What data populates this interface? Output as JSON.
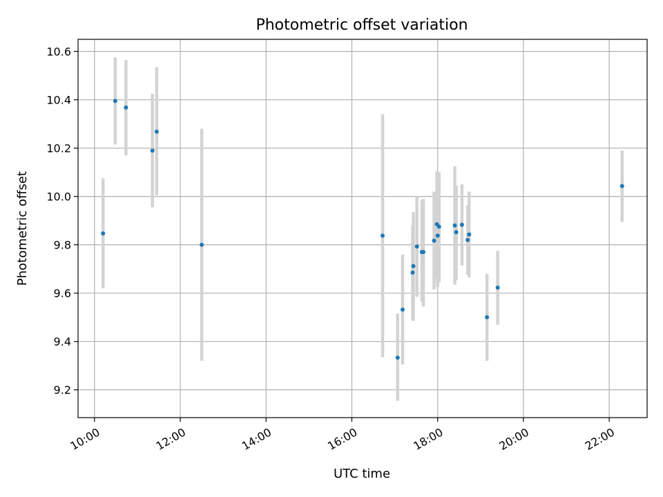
{
  "chart_data": {
    "type": "scatter",
    "title": "Photometric offset variation",
    "xlabel": "UTC time",
    "ylabel": "Photometric offset",
    "xlim": [
      "09:37",
      "22:53"
    ],
    "ylim": [
      9.085,
      10.65
    ],
    "x_ticks": [
      "10:00",
      "12:00",
      "14:00",
      "16:00",
      "18:00",
      "20:00",
      "22:00"
    ],
    "y_ticks": [
      9.2,
      9.4,
      9.6,
      9.8,
      10.0,
      10.2,
      10.4,
      10.6
    ],
    "grid": true,
    "marker_color": "#1f77b4",
    "errorbar_color": "#d3d3d3",
    "points": [
      {
        "time": "10:12",
        "value": 9.847,
        "low": 9.62,
        "high": 10.075
      },
      {
        "time": "10:29",
        "value": 10.395,
        "low": 10.215,
        "high": 10.575
      },
      {
        "time": "10:44",
        "value": 10.368,
        "low": 10.17,
        "high": 10.565
      },
      {
        "time": "11:21",
        "value": 10.19,
        "low": 9.955,
        "high": 10.425
      },
      {
        "time": "11:27",
        "value": 10.268,
        "low": 10.005,
        "high": 10.535
      },
      {
        "time": "12:30",
        "value": 9.8,
        "low": 9.32,
        "high": 10.28
      },
      {
        "time": "16:43",
        "value": 9.838,
        "low": 9.335,
        "high": 10.34
      },
      {
        "time": "17:04",
        "value": 9.333,
        "low": 9.155,
        "high": 9.515
      },
      {
        "time": "17:11",
        "value": 9.532,
        "low": 9.305,
        "high": 9.76
      },
      {
        "time": "17:25",
        "value": 9.685,
        "low": 9.49,
        "high": 9.88
      },
      {
        "time": "17:26",
        "value": 9.712,
        "low": 9.485,
        "high": 9.935
      },
      {
        "time": "17:31",
        "value": 9.793,
        "low": 9.585,
        "high": 10.0
      },
      {
        "time": "17:38",
        "value": 9.77,
        "low": 9.565,
        "high": 9.985
      },
      {
        "time": "17:40",
        "value": 9.77,
        "low": 9.545,
        "high": 9.99
      },
      {
        "time": "17:55",
        "value": 9.817,
        "low": 9.615,
        "high": 10.02
      },
      {
        "time": "17:59",
        "value": 9.885,
        "low": 9.66,
        "high": 10.105
      },
      {
        "time": "18:00",
        "value": 9.838,
        "low": 9.625,
        "high": 10.05
      },
      {
        "time": "18:02",
        "value": 9.875,
        "low": 9.645,
        "high": 10.1
      },
      {
        "time": "18:24",
        "value": 9.88,
        "low": 9.635,
        "high": 10.125
      },
      {
        "time": "18:26",
        "value": 9.852,
        "low": 9.655,
        "high": 10.045
      },
      {
        "time": "18:34",
        "value": 9.883,
        "low": 9.715,
        "high": 10.05
      },
      {
        "time": "18:42",
        "value": 9.82,
        "low": 9.675,
        "high": 9.965
      },
      {
        "time": "18:44",
        "value": 9.843,
        "low": 9.665,
        "high": 10.02
      },
      {
        "time": "19:09",
        "value": 9.5,
        "low": 9.32,
        "high": 9.68
      },
      {
        "time": "19:24",
        "value": 9.623,
        "low": 9.47,
        "high": 9.775
      },
      {
        "time": "22:18",
        "value": 10.043,
        "low": 9.895,
        "high": 10.19
      }
    ]
  }
}
